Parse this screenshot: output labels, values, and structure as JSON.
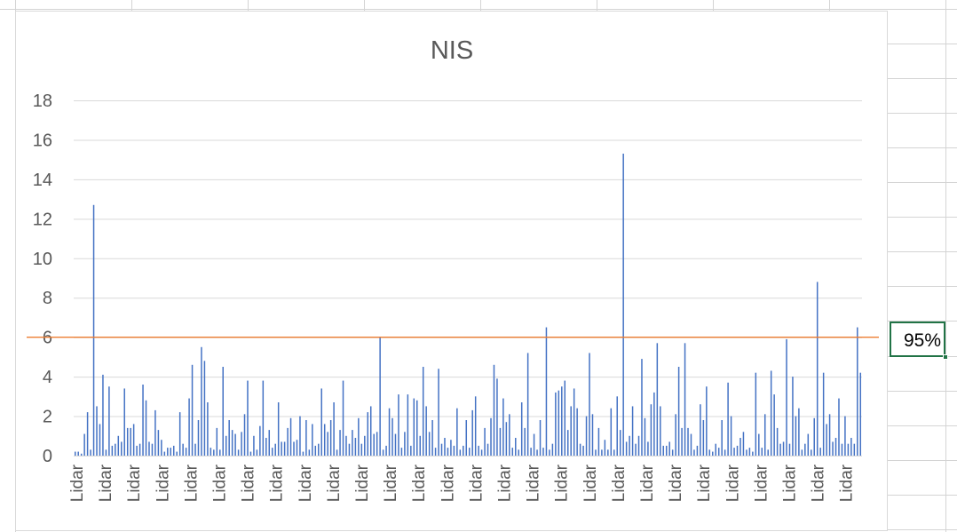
{
  "spreadsheet": {
    "selected_cell_value": "95%",
    "selection_color": "#217346"
  },
  "chart_data": {
    "type": "bar",
    "title": "NIS",
    "xlabel": "",
    "ylabel": "",
    "ylim": [
      0,
      18
    ],
    "yticks": [
      0,
      2,
      4,
      6,
      8,
      10,
      12,
      14,
      16,
      18
    ],
    "grid": true,
    "legend": "none",
    "bar_color": "#4472c4",
    "category_label": "Lidar",
    "x_label_count": 28,
    "values": [
      0.2,
      0.2,
      0.1,
      1.1,
      2.2,
      0.3,
      12.7,
      2.5,
      1.6,
      4.1,
      0.3,
      3.5,
      0.5,
      0.6,
      1.0,
      0.7,
      3.4,
      1.4,
      1.4,
      1.6,
      0.5,
      0.6,
      3.6,
      2.8,
      0.7,
      0.6,
      2.3,
      1.3,
      0.8,
      0.2,
      0.4,
      0.4,
      0.5,
      0.2,
      2.2,
      0.6,
      0.4,
      2.9,
      4.6,
      0.6,
      1.8,
      5.5,
      4.8,
      2.7,
      0.4,
      0.3,
      1.4,
      0.3,
      4.5,
      1.0,
      1.8,
      1.3,
      1.1,
      0.3,
      1.2,
      2.1,
      3.8,
      0.2,
      1.0,
      0.3,
      1.5,
      3.8,
      0.9,
      1.3,
      0.4,
      0.6,
      2.7,
      0.7,
      0.7,
      1.4,
      1.9,
      0.7,
      0.8,
      2.0,
      0.2,
      1.8,
      0.3,
      1.6,
      0.5,
      0.6,
      3.4,
      1.6,
      1.2,
      1.8,
      2.7,
      0.3,
      1.3,
      3.8,
      1.0,
      0.6,
      1.3,
      0.9,
      1.9,
      0.6,
      1.0,
      2.2,
      2.5,
      1.1,
      1.2,
      6.0,
      0.3,
      0.5,
      2.4,
      1.9,
      1.1,
      3.1,
      0.4,
      1.2,
      3.1,
      0.5,
      2.9,
      2.8,
      1.0,
      4.5,
      2.5,
      1.2,
      1.8,
      0.4,
      4.4,
      0.6,
      0.9,
      0.4,
      0.8,
      0.5,
      2.4,
      0.3,
      0.5,
      1.8,
      0.4,
      2.3,
      3.0,
      0.5,
      0.3,
      1.4,
      0.6,
      1.9,
      4.6,
      3.9,
      1.4,
      2.9,
      1.7,
      2.1,
      0.4,
      0.9,
      0.3,
      2.7,
      1.4,
      5.2,
      0.4,
      1.1,
      0.3,
      1.8,
      0.4,
      6.5,
      0.3,
      0.6,
      3.2,
      3.3,
      3.5,
      3.8,
      1.3,
      2.5,
      3.4,
      2.4,
      0.6,
      0.5,
      2.0,
      5.2,
      2.1,
      0.3,
      1.4,
      0.3,
      0.8,
      0.3,
      2.4,
      0.3,
      3.0,
      1.3,
      15.3,
      0.7,
      1.0,
      2.5,
      0.6,
      1.0,
      4.9,
      1.9,
      0.7,
      2.6,
      3.2,
      5.7,
      2.5,
      0.5,
      0.5,
      0.7,
      0.3,
      2.1,
      4.5,
      1.4,
      5.7,
      1.4,
      1.1,
      0.3,
      0.5,
      2.6,
      1.8,
      3.5,
      0.3,
      0.2,
      0.6,
      0.4,
      1.8,
      0.3,
      3.7,
      2.0,
      0.4,
      0.5,
      0.9,
      1.2,
      0.3,
      0.4,
      0.2,
      4.2,
      1.1,
      0.4,
      2.1,
      0.3,
      4.3,
      3.1,
      1.4,
      0.6,
      0.7,
      5.9,
      0.6,
      4.0,
      2.0,
      2.4,
      0.3,
      0.6,
      1.1,
      0.3,
      1.9,
      8.8,
      0.4,
      4.2,
      1.6,
      2.1,
      0.7,
      0.9,
      2.9,
      0.6,
      2.0,
      0.6,
      0.9,
      0.6,
      6.5,
      4.2
    ],
    "reference_line": {
      "value": 6.0,
      "color": "#ed7d31"
    }
  }
}
